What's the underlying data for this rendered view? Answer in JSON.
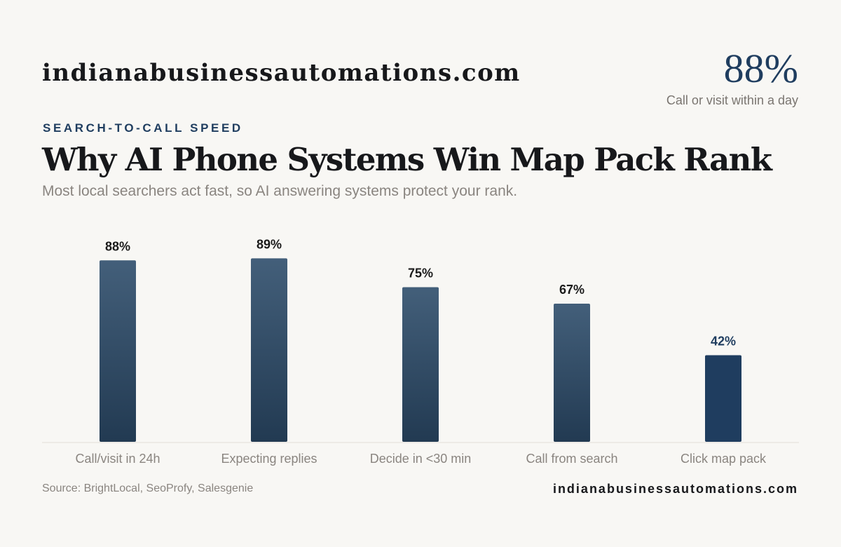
{
  "header": {
    "domain": "indianabusinessautomations.com",
    "stat_value": "88%",
    "stat_caption": "Call or visit within a day"
  },
  "eyebrow": "SEARCH-TO-CALL SPEED",
  "title": "Why AI Phone Systems Win Map Pack Rank",
  "subtitle": "Most local searchers act fast, so AI answering systems protect your rank.",
  "footer": {
    "source": "Source: BrightLocal, SeoProfy, Salesgenie",
    "domain": "indianabusinessautomations.com"
  },
  "colors": {
    "background": "#f8f7f4",
    "bar_top": "#435f7a",
    "bar_bottom": "#223a52",
    "highlight_bar": "#1f3d5f",
    "value_label": "#1a1a1a",
    "highlight_label": "#1f3d5f",
    "category_label": "#8a8580",
    "axis": "#e2ded8"
  },
  "chart_data": {
    "type": "bar",
    "categories": [
      "Call/visit in 24h",
      "Expecting replies",
      "Decide in <30 min",
      "Call from search",
      "Click map pack"
    ],
    "values": [
      88,
      89,
      75,
      67,
      42
    ],
    "value_labels": [
      "88%",
      "89%",
      "75%",
      "67%",
      "42%"
    ],
    "highlight_index": 4,
    "title": "Why AI Phone Systems Win Map Pack Rank",
    "xlabel": "",
    "ylabel": "",
    "ylim": [
      0,
      100
    ],
    "grid": false,
    "legend": "none"
  }
}
